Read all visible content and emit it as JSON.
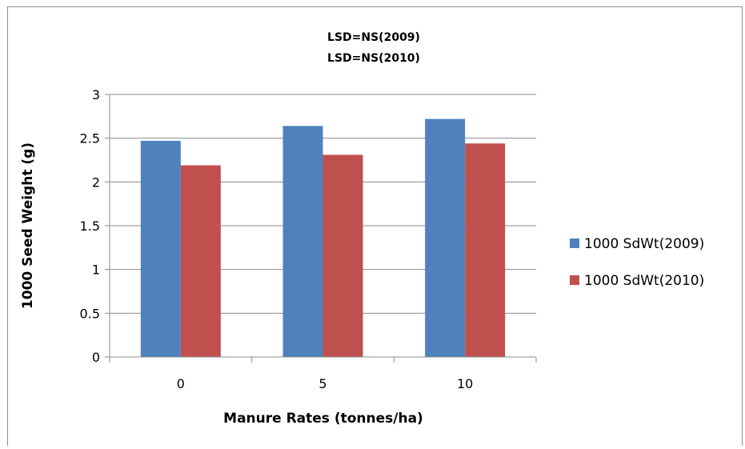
{
  "chart_data": {
    "type": "bar",
    "title_lines": [
      "LSD=NS(2009)",
      "LSD=NS(2010)"
    ],
    "xlabel": "Manure Rates (tonnes/ha)",
    "ylabel": "1000 Seed Weight (g)",
    "categories": [
      "0",
      "5",
      "10"
    ],
    "ylim": [
      0,
      3
    ],
    "yticks": [
      "0",
      "0.5",
      "1",
      "1.5",
      "2",
      "2.5",
      "3"
    ],
    "grid": true,
    "legend_position": "right",
    "series": [
      {
        "name": "1000 SdWt(2009)",
        "color": "#4f81bd",
        "values": [
          2.47,
          2.64,
          2.72
        ]
      },
      {
        "name": "1000 SdWt(2010)",
        "color": "#c0504d",
        "values": [
          2.19,
          2.31,
          2.44
        ]
      }
    ]
  }
}
